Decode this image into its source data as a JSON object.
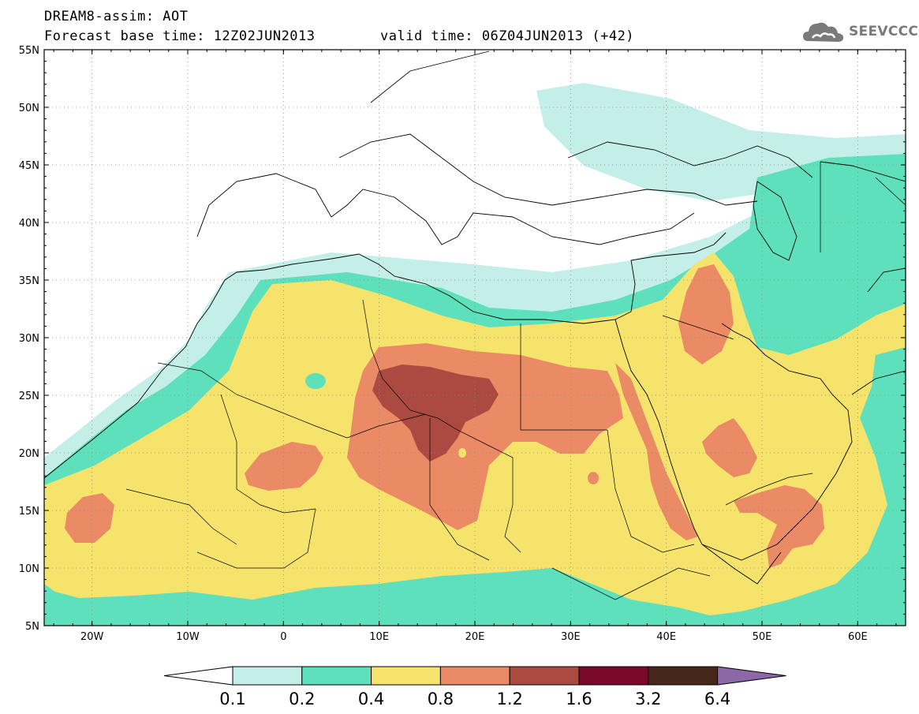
{
  "header": {
    "line1": "DREAM8-assim: AOT",
    "line2": "Forecast base time: 12Z02JUN2013",
    "valid": "valid time: 06Z04JUN2013 (+42)"
  },
  "logo": {
    "text": "SEEVCCC",
    "icon": "cloud-icon"
  },
  "map": {
    "lat_labels": [
      "55N",
      "50N",
      "45N",
      "40N",
      "35N",
      "30N",
      "25N",
      "20N",
      "15N",
      "10N",
      "5N"
    ],
    "lon_labels": [
      "20W",
      "10W",
      "0",
      "10E",
      "20E",
      "30E",
      "40E",
      "50E",
      "60E"
    ],
    "lat_range": [
      5,
      55
    ],
    "lon_range": [
      -25,
      65
    ],
    "gridlines": "dotted"
  },
  "colorbar": {
    "labels": [
      "0.1",
      "0.2",
      "0.4",
      "0.8",
      "1.2",
      "1.6",
      "3.2",
      "6.4"
    ],
    "colors": [
      "#ffffff",
      "#c4efe8",
      "#5de0bb",
      "#f6e36c",
      "#eb8b66",
      "#ab4a40",
      "#7a0a2a",
      "#45281a",
      "#8c68a8"
    ]
  }
}
